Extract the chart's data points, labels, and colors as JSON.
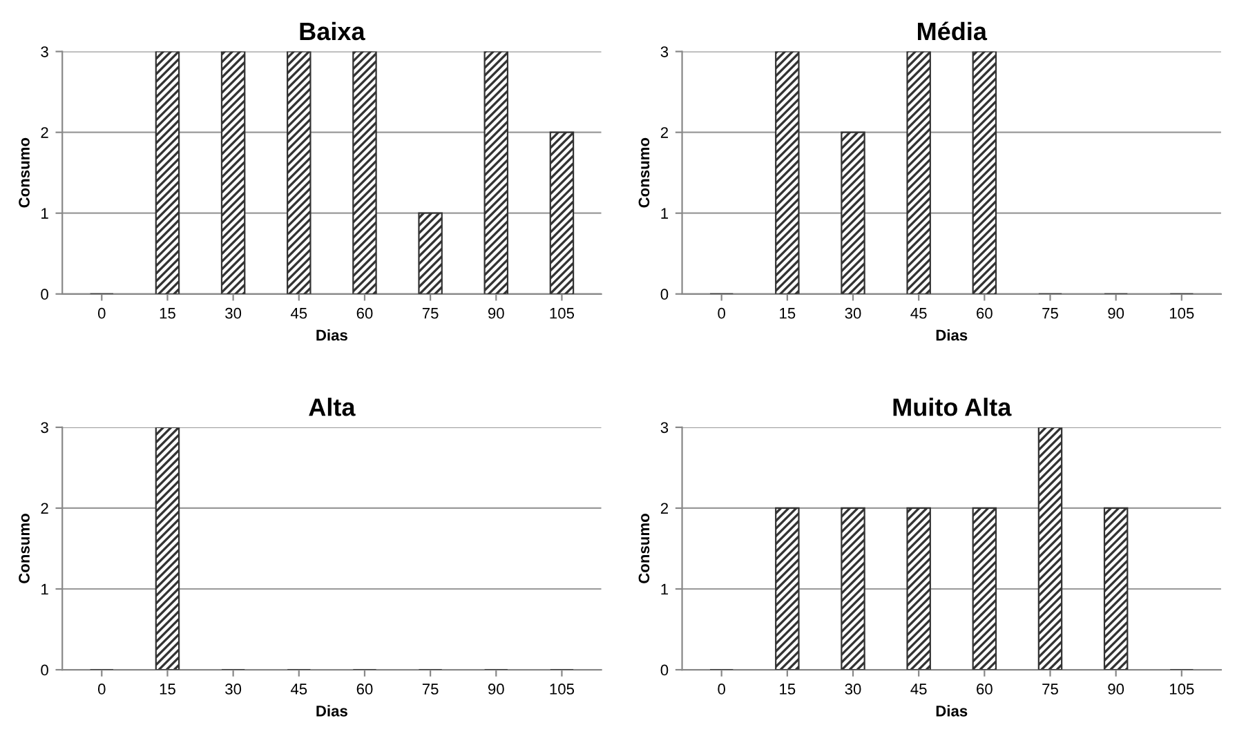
{
  "chart_data": [
    {
      "type": "bar",
      "title": "Baixa",
      "xlabel": "Dias",
      "ylabel": "Consumo",
      "categories": [
        "0",
        "15",
        "30",
        "45",
        "60",
        "75",
        "90",
        "105"
      ],
      "values": [
        0,
        3,
        3,
        3,
        3,
        1,
        3,
        2
      ],
      "color": "#333333",
      "ylim": [
        0,
        3
      ],
      "yticks": [
        0,
        1,
        2,
        3
      ],
      "grid": "y"
    },
    {
      "type": "bar",
      "title": "Média",
      "xlabel": "Dias",
      "ylabel": "Consumo",
      "categories": [
        "0",
        "15",
        "30",
        "45",
        "60",
        "75",
        "90",
        "105"
      ],
      "values": [
        0,
        3,
        2,
        3,
        3,
        0,
        0,
        0
      ],
      "color": "#333333",
      "ylim": [
        0,
        3
      ],
      "yticks": [
        0,
        1,
        2,
        3
      ],
      "grid": "y"
    },
    {
      "type": "bar",
      "title": "Alta",
      "xlabel": "Dias",
      "ylabel": "Consumo",
      "categories": [
        "0",
        "15",
        "30",
        "45",
        "60",
        "75",
        "90",
        "105"
      ],
      "values": [
        0,
        3,
        0,
        0,
        0,
        0,
        0,
        0
      ],
      "color": "#333333",
      "ylim": [
        0,
        3
      ],
      "yticks": [
        0,
        1,
        2,
        3
      ],
      "grid": "y"
    },
    {
      "type": "bar",
      "title": "Muito Alta",
      "xlabel": "Dias",
      "ylabel": "Consumo",
      "categories": [
        "0",
        "15",
        "30",
        "45",
        "60",
        "75",
        "90",
        "105"
      ],
      "values": [
        0,
        2,
        2,
        2,
        2,
        3,
        2,
        0
      ],
      "color": "#333333",
      "ylim": [
        0,
        3
      ],
      "yticks": [
        0,
        1,
        2,
        3
      ],
      "grid": "y"
    }
  ]
}
